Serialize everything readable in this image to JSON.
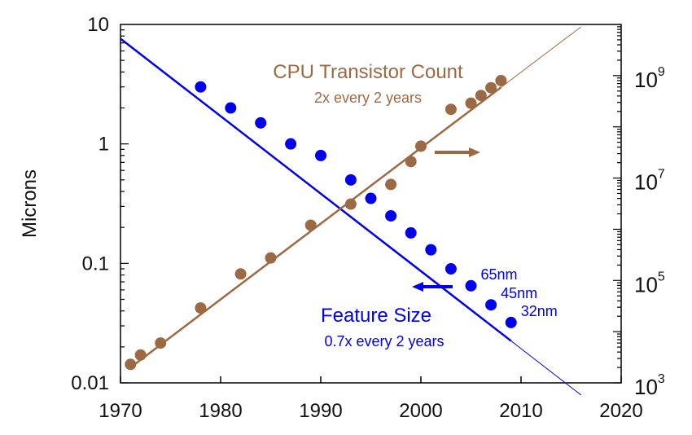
{
  "chart_data": {
    "type": "scatter",
    "title": "",
    "xlabel": "",
    "ylabel": "Microns",
    "xlim": [
      1970,
      2020
    ],
    "ylim": [
      0.01,
      10
    ],
    "y_scale": "log",
    "y2lim": [
      1000,
      10000000000
    ],
    "y2_scale": "log",
    "x_ticks": [
      "1970",
      "1980",
      "1990",
      "2000",
      "2010",
      "2020"
    ],
    "y_ticks": [
      "10",
      "1",
      "0.1",
      "0.01"
    ],
    "y2_ticks": [
      {
        "base": "10",
        "exp": "9",
        "value": 1000000000
      },
      {
        "base": "10",
        "exp": "7",
        "value": 10000000
      },
      {
        "base": "10",
        "exp": "5",
        "value": 100000
      },
      {
        "base": "10",
        "exp": "3",
        "value": 1000
      }
    ],
    "grid": false,
    "series": [
      {
        "name": "Feature Size",
        "axis": "left",
        "color": "#0000ee",
        "annotation": "0.7x every 2 years",
        "arrow_direction": "left",
        "points": [
          {
            "x": 1978,
            "y": 3.0
          },
          {
            "x": 1981,
            "y": 2.0
          },
          {
            "x": 1984,
            "y": 1.5
          },
          {
            "x": 1987,
            "y": 1.0
          },
          {
            "x": 1990,
            "y": 0.8
          },
          {
            "x": 1993,
            "y": 0.5
          },
          {
            "x": 1995,
            "y": 0.35
          },
          {
            "x": 1997,
            "y": 0.25
          },
          {
            "x": 1999,
            "y": 0.18
          },
          {
            "x": 2001,
            "y": 0.13
          },
          {
            "x": 2003,
            "y": 0.09
          },
          {
            "x": 2005,
            "y": 0.065
          },
          {
            "x": 2007,
            "y": 0.045
          },
          {
            "x": 2009,
            "y": 0.032
          }
        ],
        "trend": [
          {
            "x": 1970,
            "y": 7.6
          },
          {
            "x": 2016,
            "y": 0.0079
          }
        ],
        "point_labels": [
          {
            "x": 2005,
            "text": "65nm"
          },
          {
            "x": 2007,
            "text": "45nm"
          },
          {
            "x": 2009,
            "text": "32nm"
          }
        ]
      },
      {
        "name": "CPU Transistor Count",
        "axis": "right",
        "color": "#9b6a45",
        "annotation": "2x every 2 years",
        "arrow_direction": "right",
        "points": [
          {
            "x": 1971,
            "y": 2300
          },
          {
            "x": 1972,
            "y": 3500
          },
          {
            "x": 1974,
            "y": 6000
          },
          {
            "x": 1978,
            "y": 29000
          },
          {
            "x": 1982,
            "y": 134000
          },
          {
            "x": 1985,
            "y": 275000
          },
          {
            "x": 1989,
            "y": 1200000
          },
          {
            "x": 1993,
            "y": 3100000
          },
          {
            "x": 1997,
            "y": 7500000
          },
          {
            "x": 1999,
            "y": 21000000
          },
          {
            "x": 2000,
            "y": 42000000
          },
          {
            "x": 2003,
            "y": 220000000
          },
          {
            "x": 2005,
            "y": 290000000
          },
          {
            "x": 2006,
            "y": 410000000
          },
          {
            "x": 2007,
            "y": 580000000
          },
          {
            "x": 2008,
            "y": 800000000
          }
        ],
        "trend": [
          {
            "x": 1971,
            "y": 2000
          },
          {
            "x": 2016,
            "y": 9000000000
          }
        ]
      }
    ]
  }
}
